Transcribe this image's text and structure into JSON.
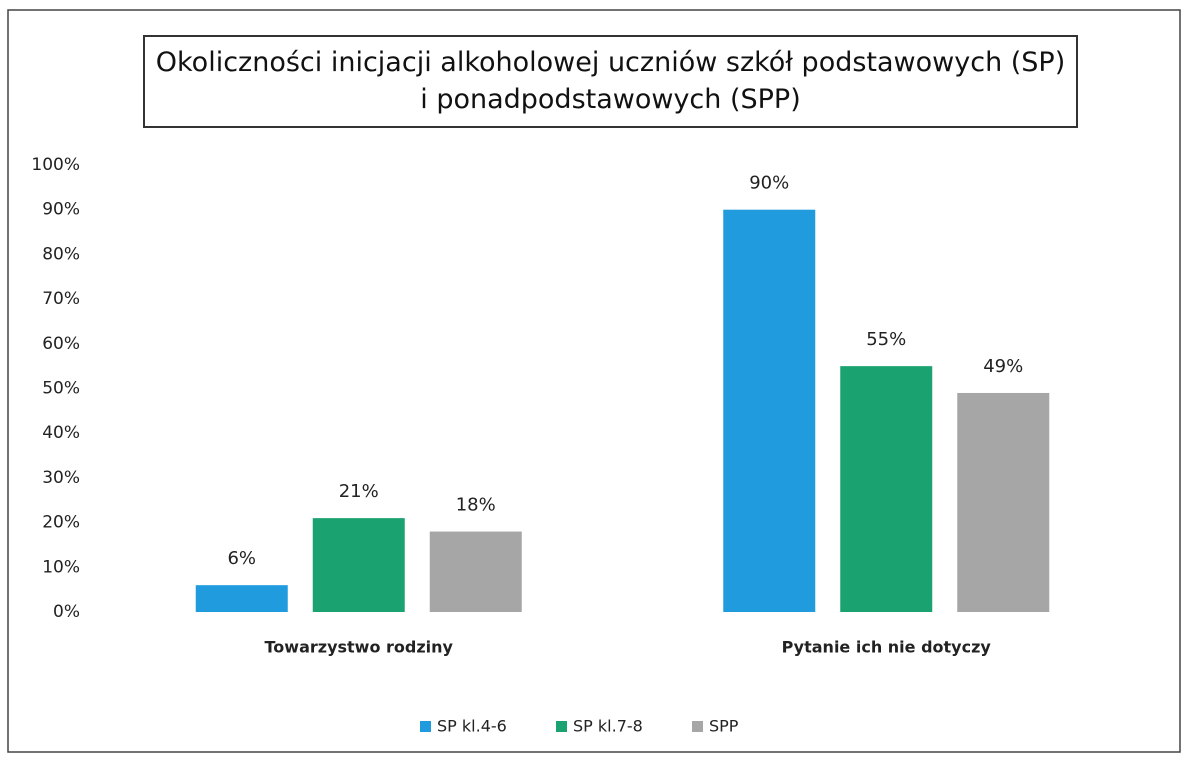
{
  "chart_data": {
    "type": "bar",
    "title": "Okoliczności inicjacji alkoholowej uczniów szkół podstawowych (SP) i ponadpodstawowych (SPP)",
    "categories": [
      "Towarzystwo rodziny",
      "Pytanie ich nie dotyczy"
    ],
    "series": [
      {
        "name": "SP kl.4-6",
        "color": "#1f9bde",
        "values": [
          6,
          90
        ],
        "value_labels": [
          "6%",
          "90%"
        ]
      },
      {
        "name": "SP kl.7-8",
        "color": "#1aa370",
        "values": [
          21,
          55
        ],
        "value_labels": [
          "21%",
          "55%"
        ]
      },
      {
        "name": "SPP",
        "color": "#a6a6a6",
        "values": [
          18,
          49
        ],
        "value_labels": [
          "18%",
          "49%"
        ]
      }
    ],
    "ylim": [
      0,
      100
    ],
    "yticks": [
      {
        "value": 0,
        "label": "0%"
      },
      {
        "value": 10,
        "label": "10%"
      },
      {
        "value": 20,
        "label": "20%"
      },
      {
        "value": 30,
        "label": "30%"
      },
      {
        "value": 40,
        "label": "40%"
      },
      {
        "value": 50,
        "label": "50%"
      },
      {
        "value": 60,
        "label": "60%"
      },
      {
        "value": 70,
        "label": "70%"
      },
      {
        "value": 80,
        "label": "80%"
      },
      {
        "value": 90,
        "label": "90%"
      },
      {
        "value": 100,
        "label": "100%"
      }
    ],
    "grid": false,
    "legend": "bottom"
  }
}
